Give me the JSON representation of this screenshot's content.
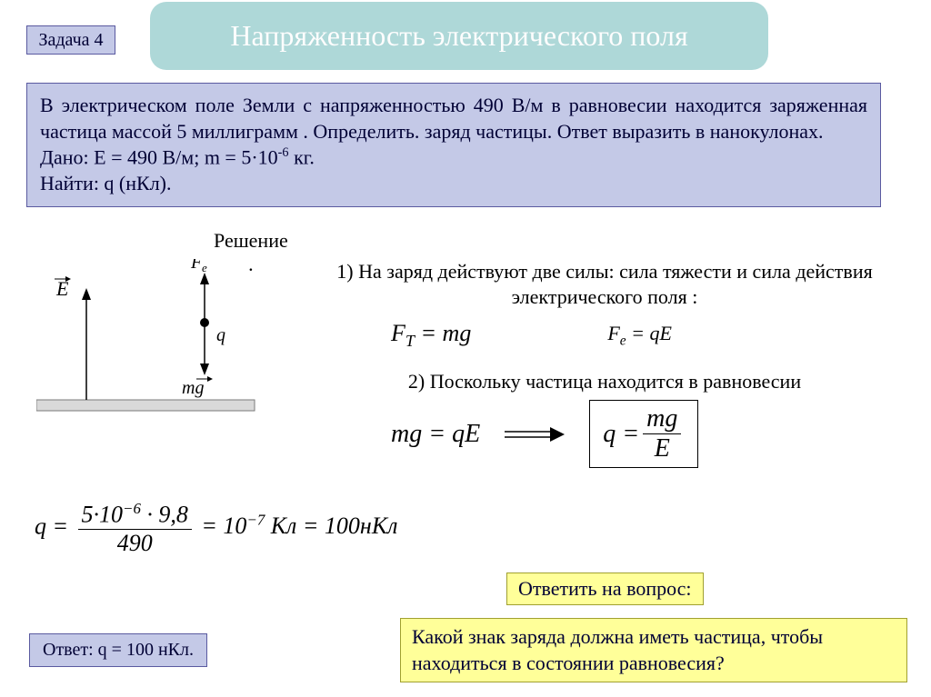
{
  "title": "Напряженность электрического поля",
  "task_label": "Задача 4",
  "problem": {
    "text": "В электрическом поле Земли с напряженностью 490 В/м в равновесии находится заряженная частица массой 5 миллиграмм . Определить. заряд частицы. Ответ выразить в нанокулонах.",
    "given_html": "Дано: Е = 490 В/м; m = 5·10<sup>-6</sup> кг.",
    "find": "Найти: q (нКл)."
  },
  "solution_label": "Решение",
  "diagram": {
    "E_label": "E",
    "Fe_label": "Fₑ",
    "q_label": "q",
    "mg_label": "mg",
    "ground_color": "#d9d9d9",
    "ground_border": "#7a7a7a"
  },
  "step1": "1) На заряд действуют две силы: сила тяжести и сила действия электрического поля :",
  "formula_FT": "F<span class='sub'>T</span> = mg",
  "formula_Fe": "F<span class='sub'>e</span> = qE",
  "step2": "2) Поскольку частица находится в равновесии",
  "formula_eq": "mg = qE",
  "formula_q_num": "mg",
  "formula_q_den": "E",
  "formula_q_lhs": "q =",
  "calc_lhs": "q =",
  "calc_num": "5·10<sup>−6</sup> · 9,8",
  "calc_den": "490",
  "calc_rhs": "= 10<sup>−7</sup> Кл = 100нКл",
  "answer_q_label": "Ответить на вопрос:",
  "answer": "Ответ: q = 100 нКл.",
  "question": "Какой знак заряда должна иметь частица, чтобы находиться в состоянии равновесия?",
  "colors": {
    "banner_bg": "#aed8d8",
    "banner_text": "#fdfdfd",
    "lavender_bg": "#c4c9e7",
    "lavender_border": "#5a5aa0",
    "yellow_bg": "#ffff99",
    "yellow_border": "#a0a030",
    "text_dark": "#000034"
  }
}
